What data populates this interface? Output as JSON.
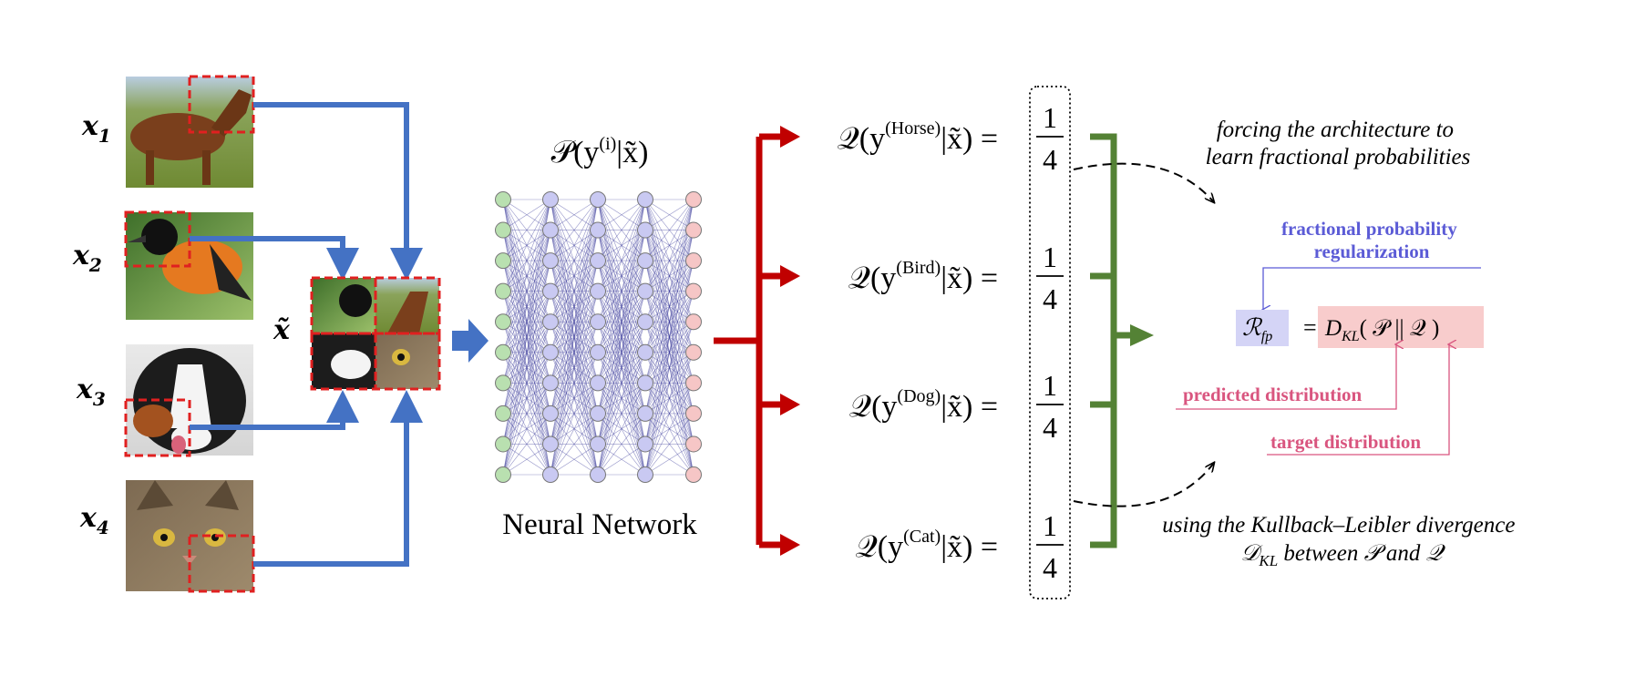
{
  "inputs": [
    {
      "symbol": "x",
      "sub": "1",
      "image": "horse"
    },
    {
      "symbol": "x",
      "sub": "2",
      "image": "bird"
    },
    {
      "symbol": "x",
      "sub": "3",
      "image": "dog"
    },
    {
      "symbol": "x",
      "sub": "4",
      "image": "cat"
    }
  ],
  "mixed": {
    "symbol": "x̃"
  },
  "network": {
    "title_P": "𝒫",
    "title_open": "(y",
    "title_sup": "(i)",
    "title_close": "|x̃)",
    "label": "Neural Network"
  },
  "outputs": [
    {
      "Q": "𝒬",
      "open": "(y",
      "class": "(Horse)",
      "close": "|x̃) =",
      "num": "1",
      "den": "4"
    },
    {
      "Q": "𝒬",
      "open": "(y",
      "class": "(Bird)",
      "close": "|x̃) =",
      "num": "1",
      "den": "4"
    },
    {
      "Q": "𝒬",
      "open": "(y",
      "class": "(Dog)",
      "close": "|x̃) =",
      "num": "1",
      "den": "4"
    },
    {
      "Q": "𝒬",
      "open": "(y",
      "class": "(Cat)",
      "close": "|x̃) =",
      "num": "1",
      "den": "4"
    }
  ],
  "annotations": {
    "top_line1": "forcing the architecture to",
    "top_line2": "learn fractional probabilities",
    "bottom_line1": "using the Kullback–Leibler divergence",
    "bottom_D": "𝒟",
    "bottom_sub": "KL",
    "bottom_rest": " between 𝒫 and 𝒬"
  },
  "regularizer": {
    "label_line1": "fractional probability",
    "label_line2": "regularization",
    "R": "ℛ",
    "R_sub": "fp",
    "equals": "=",
    "D": "D",
    "D_sub": "KL",
    "body": "( 𝒫  ||  𝒬 )",
    "predicted": "predicted distribution",
    "target": "target distribution"
  },
  "colors": {
    "blue_arrow": "#4472c4",
    "red_arrow": "#c00000",
    "green_bracket": "#548235",
    "net_edge": "#3a3a9a",
    "node_green": "#b9e0b0",
    "node_purple": "#c9c9f2",
    "node_pink": "#f6c6c6",
    "reg_blue": "#5b5bd6",
    "reg_pink": "#d9557f",
    "box_blue": "#d4d4f6",
    "box_pink": "#f8cccc",
    "crop_red": "#e02020"
  }
}
